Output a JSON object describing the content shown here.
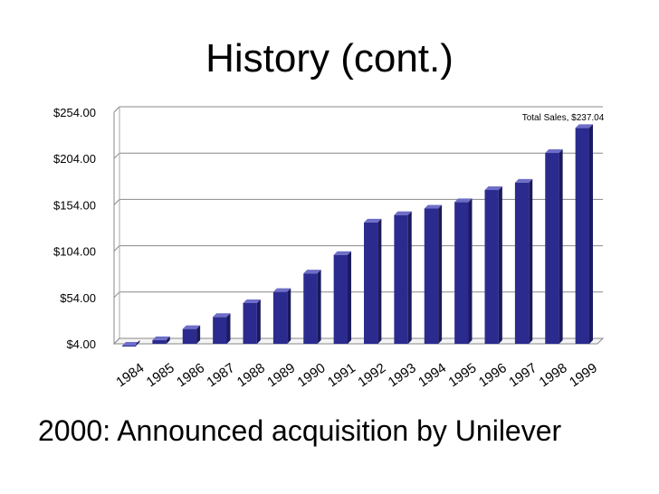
{
  "slide": {
    "title": "History (cont.)",
    "footer": "2000: Announced acquisition by Unilever"
  },
  "chart_data": {
    "type": "bar",
    "categories": [
      "1984",
      "1985",
      "1986",
      "1987",
      "1988",
      "1989",
      "1990",
      "1991",
      "1992",
      "1993",
      "1994",
      "1995",
      "1996",
      "1997",
      "1998",
      "1999"
    ],
    "series": [
      {
        "values": [
          2,
          8,
          20,
          33,
          48,
          60,
          80,
          100,
          135,
          143,
          150,
          157,
          170,
          178,
          210,
          237.04
        ],
        "color": "#2b2b8f"
      }
    ],
    "yticks": [
      "$4.00",
      "$54.00",
      "$104.00",
      "$154.00",
      "$204.00",
      "$254.00"
    ],
    "ylim": [
      4,
      254
    ],
    "grid": true,
    "data_label": "Total Sales, $237.04",
    "data_label_index": 15
  }
}
